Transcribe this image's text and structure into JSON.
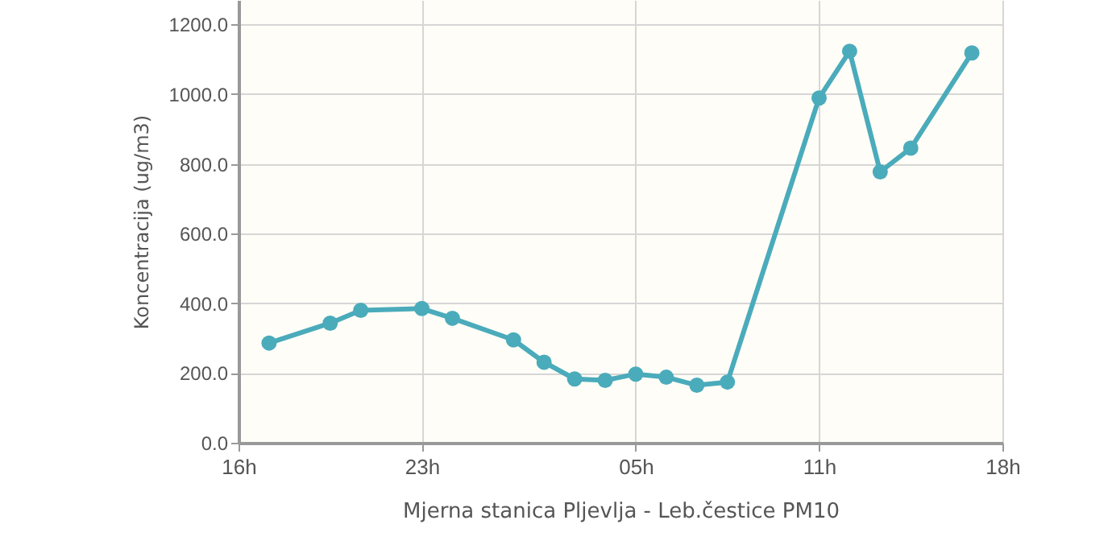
{
  "chart_data": {
    "type": "line",
    "xlabel": "Mjerna stanica Pljevlja - Leb.čestice PM10",
    "ylabel": "Koncentracija (ug/m3)",
    "categories": [
      "16h",
      null,
      null,
      null,
      null,
      null,
      "23h",
      null,
      null,
      null,
      null,
      null,
      null,
      "05h",
      null,
      null,
      null,
      null,
      null,
      "11h",
      null,
      null,
      null,
      null,
      null,
      "18h"
    ],
    "series": [
      {
        "color": "#4aabbb",
        "values": [
          null,
          286,
          null,
          343,
          380,
          null,
          385,
          357,
          null,
          295,
          231,
          183,
          179,
          197,
          188,
          165,
          174,
          null,
          null,
          989,
          1123,
          777,
          845,
          null,
          1118,
          null
        ]
      }
    ],
    "ylim": [
      0,
      1270
    ],
    "yticks": [
      {
        "value": 0,
        "label": "0.0"
      },
      {
        "value": 200,
        "label": "200.0"
      },
      {
        "value": 400,
        "label": "400.0"
      },
      {
        "value": 600,
        "label": "600.0"
      },
      {
        "value": 800,
        "label": "800.0"
      },
      {
        "value": 1000,
        "label": "1000.0"
      },
      {
        "value": 1200,
        "label": "1200.0"
      }
    ],
    "grid": true,
    "marker": "circle",
    "line_style": "solid"
  }
}
